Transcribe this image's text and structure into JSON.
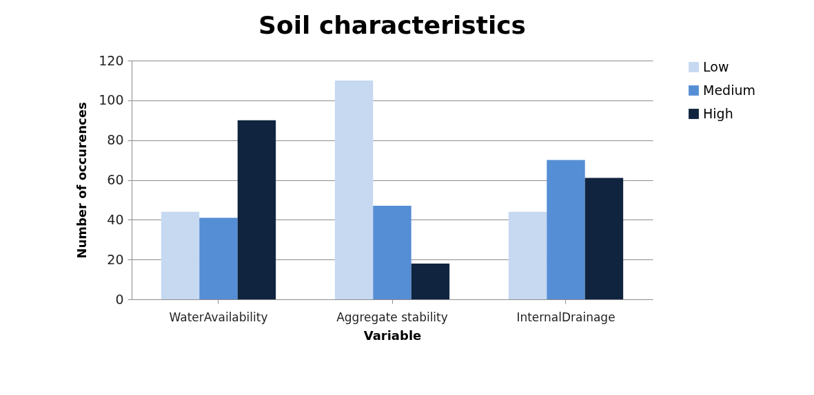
{
  "chart_data": {
    "type": "bar",
    "title": "Soil characteristics",
    "xlabel": "Variable",
    "ylabel": "Number of occurences",
    "categories": [
      "WaterAvailability",
      "Aggregate stability",
      "InternalDrainage"
    ],
    "series": [
      {
        "name": "Low",
        "color": "#c6d9f1",
        "values": [
          44,
          110,
          44
        ]
      },
      {
        "name": "Medium",
        "color": "#558ed5",
        "values": [
          41,
          47,
          70
        ]
      },
      {
        "name": "High",
        "color": "#10243f",
        "values": [
          90,
          18,
          61
        ]
      }
    ],
    "ylim": [
      0,
      120
    ],
    "yticks": [
      0,
      20,
      40,
      60,
      80,
      100,
      120
    ],
    "grid": "y",
    "legend": "right"
  }
}
